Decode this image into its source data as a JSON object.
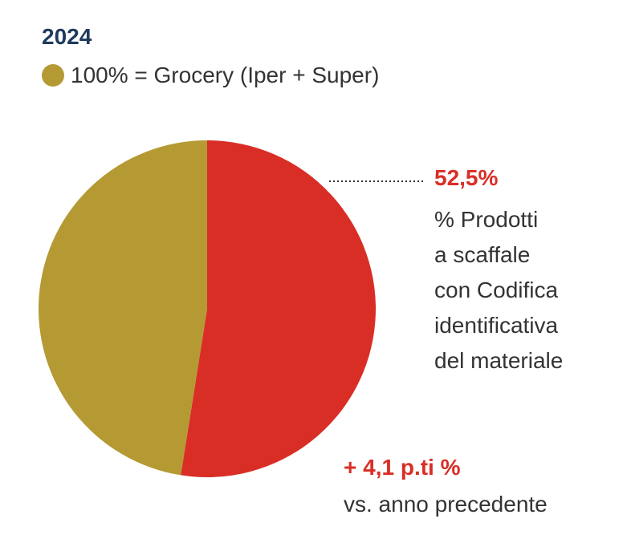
{
  "year": "2024",
  "legend": {
    "label": "100% = Grocery (Iper + Super)"
  },
  "colors": {
    "gold": "#b59a34",
    "red": "#d92e26",
    "navy": "#1f3a5c"
  },
  "chart_data": {
    "type": "pie",
    "slices": [
      {
        "value": 52.5,
        "label": "52,5%",
        "color": "#d92e26"
      },
      {
        "value": 47.5,
        "color": "#b59a34"
      }
    ],
    "annotation": {
      "value_label": "52,5%",
      "description_lines": [
        "% Prodotti",
        "a scaffale",
        "con Codifica",
        "identificativa",
        "del materiale"
      ]
    },
    "change": {
      "value": "+ 4,1 p.ti %",
      "text": "vs. anno precedente"
    }
  }
}
